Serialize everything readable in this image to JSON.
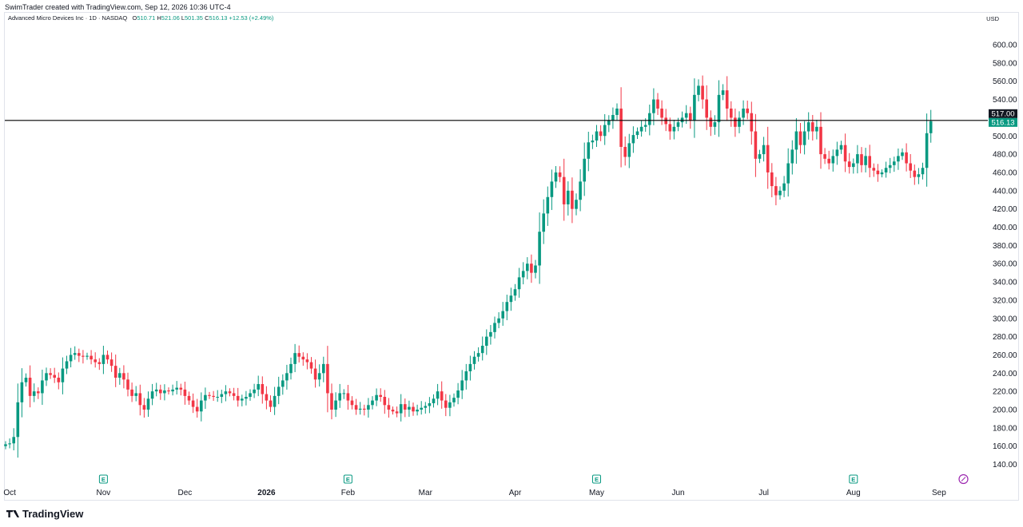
{
  "caption": "SwimTrader created with TradingView.com, Sep 12, 2026 10:36 UTC-4",
  "legend": {
    "title": "Advanced Micro Devices Inc · 1D · NASDAQ",
    "o_label": "O",
    "o": "510.71",
    "h_label": "H",
    "h": "521.06",
    "l_label": "L",
    "l": "501.35",
    "c_label": "C",
    "c": "516.13",
    "change": "+12.53 (+2.49%)"
  },
  "currency": "USD",
  "brand": "TradingView",
  "colors": {
    "up": "#089981",
    "down": "#f23645",
    "axis_text": "#131722",
    "line": "#000000"
  },
  "chart_data": {
    "type": "candlestick",
    "ylim": [
      125,
      613
    ],
    "y_ticks": [
      140,
      160,
      180,
      200,
      220,
      240,
      260,
      280,
      300,
      320,
      340,
      360,
      380,
      400,
      420,
      440,
      460,
      480,
      500,
      520,
      540,
      560,
      580,
      600
    ],
    "y_tick_labels": [
      "140.00",
      "160.00",
      "180.00",
      "200.00",
      "220.00",
      "240.00",
      "260.00",
      "280.00",
      "300.00",
      "320.00",
      "340.00",
      "360.00",
      "380.00",
      "400.00",
      "420.00",
      "440.00",
      "460.00",
      "480.00",
      "500.00",
      "520.00",
      "540.00",
      "560.00",
      "580.00",
      "600.00"
    ],
    "x_labels": [
      {
        "label": "Oct",
        "bar": 1,
        "bold": false
      },
      {
        "label": "Nov",
        "bar": 24,
        "bold": false
      },
      {
        "label": "Dec",
        "bar": 44,
        "bold": false
      },
      {
        "label": "2026",
        "bar": 64,
        "bold": true
      },
      {
        "label": "Feb",
        "bar": 84,
        "bold": false
      },
      {
        "label": "Mar",
        "bar": 103,
        "bold": false
      },
      {
        "label": "Apr",
        "bar": 125,
        "bold": false
      },
      {
        "label": "May",
        "bar": 145,
        "bold": false
      },
      {
        "label": "Jun",
        "bar": 165,
        "bold": false
      },
      {
        "label": "Jul",
        "bar": 186,
        "bold": false
      },
      {
        "label": "Aug",
        "bar": 208,
        "bold": false
      },
      {
        "label": "Sep",
        "bar": 229,
        "bold": false
      }
    ],
    "earnings_marker_bars": [
      24,
      84,
      145,
      208
    ],
    "earnings_marker_label": "E",
    "dividend_marker_bar": 235,
    "horizontal_line": {
      "value": 517.0,
      "label": "517.00"
    },
    "last_price": {
      "value": 516.13,
      "label": "516.13"
    },
    "closes": [
      162,
      163,
      170,
      208,
      230,
      235,
      215,
      220,
      218,
      232,
      240,
      238,
      235,
      230,
      245,
      253,
      260,
      262,
      259,
      258,
      259,
      255,
      252,
      250,
      260,
      255,
      248,
      235,
      240,
      233,
      222,
      215,
      218,
      205,
      200,
      212,
      220,
      222,
      218,
      221,
      220,
      222,
      224,
      222,
      215,
      210,
      203,
      198,
      210,
      216,
      215,
      214,
      214,
      217,
      220,
      218,
      215,
      210,
      212,
      214,
      218,
      222,
      228,
      217,
      210,
      203,
      215,
      225,
      232,
      240,
      250,
      262,
      258,
      255,
      252,
      245,
      233,
      240,
      250,
      218,
      200,
      210,
      218,
      218,
      210,
      205,
      200,
      201,
      200,
      205,
      210,
      216,
      214,
      205,
      200,
      198,
      196,
      206,
      200,
      203,
      198,
      200,
      202,
      204,
      207,
      212,
      220,
      210,
      202,
      208,
      213,
      221,
      232,
      242,
      250,
      258,
      262,
      270,
      280,
      285,
      295,
      300,
      308,
      318,
      325,
      332,
      345,
      352,
      360,
      350,
      358,
      395,
      415,
      433,
      450,
      460,
      455,
      425,
      440,
      420,
      430,
      450,
      475,
      493,
      495,
      505,
      500,
      512,
      517,
      523,
      530,
      488,
      477,
      492,
      501,
      505,
      510,
      512,
      525,
      540,
      530,
      520,
      513,
      505,
      510,
      515,
      520,
      525,
      517,
      545,
      555,
      540,
      520,
      510,
      515,
      545,
      550,
      530,
      520,
      510,
      520,
      530,
      525,
      505,
      475,
      480,
      490,
      460,
      445,
      435,
      440,
      448,
      470,
      485,
      505,
      490,
      505,
      515,
      505,
      510,
      480,
      475,
      470,
      478,
      485,
      490,
      472,
      466,
      470,
      480,
      468,
      478,
      465,
      462,
      458,
      460,
      465,
      468,
      472,
      478,
      482,
      470,
      462,
      455,
      458,
      465,
      503,
      516.13
    ]
  }
}
